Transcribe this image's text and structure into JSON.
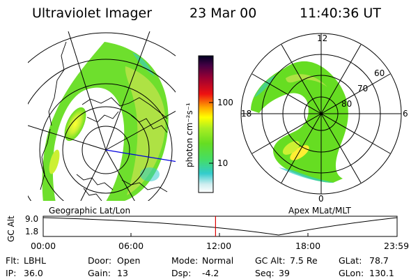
{
  "header": {
    "instrument": "Ultraviolet Imager",
    "date": "23 Mar 00",
    "time": "11:40:36 UT"
  },
  "left_panel": {
    "label": "Geographic Lat/Lon"
  },
  "right_panel": {
    "label": "Apex MLat/MLT",
    "mlt_labels": [
      "12",
      "18",
      "6",
      "0"
    ],
    "mlat_labels": [
      "60",
      "70",
      "80"
    ]
  },
  "colorbar": {
    "unit_label": "photon cm⁻²s⁻¹",
    "ticks": [
      "100",
      "10"
    ]
  },
  "orbit_plot": {
    "ylabel": "GC Alt",
    "y_ticks": [
      "9.0",
      "1.8"
    ],
    "time_ticks": [
      "00:00",
      "06:00",
      "12:00",
      "18:00",
      "23:59"
    ],
    "current_time_fraction": 0.487
  },
  "status": {
    "row1": [
      {
        "label": "Flt:",
        "value": "LBHL"
      },
      {
        "label": "Door:",
        "value": "Open"
      },
      {
        "label": "Mode:",
        "value": "Normal"
      },
      {
        "label": "GC Alt:",
        "value": "7.5 Re"
      },
      {
        "label": "GLat:",
        "value": "78.7"
      }
    ],
    "row2": [
      {
        "label": "IP:",
        "value": "36.0"
      },
      {
        "label": "Gain:",
        "value": "13"
      },
      {
        "label": "Dsp:",
        "value": "-4.2"
      },
      {
        "label": "Seq:",
        "value": "39"
      },
      {
        "label": "GLon:",
        "value": "130.1"
      }
    ]
  },
  "colors": {
    "aurora_bright": "#ffe600",
    "aurora_mid": "#66dd22",
    "aurora_low": "#33cccc",
    "current_time_marker": "#dd0000",
    "meridian_line": "#0000dd"
  }
}
